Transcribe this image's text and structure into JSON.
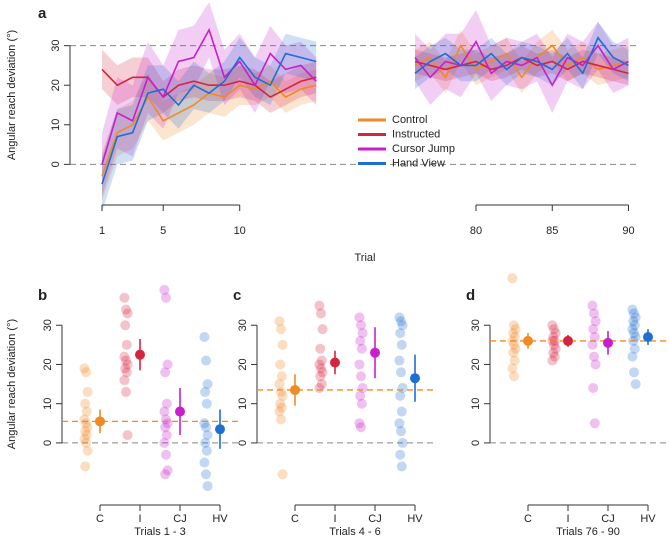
{
  "chart_data": [
    {
      "type": "line",
      "panel": "a",
      "ylabel": "Angular reach deviation (°)",
      "xlabel": "Trial",
      "x": [
        1,
        2,
        3,
        4,
        5,
        6,
        7,
        8,
        9,
        10,
        11,
        12,
        13,
        14,
        15,
        76,
        77,
        78,
        79,
        80,
        81,
        82,
        83,
        84,
        85,
        86,
        87,
        88,
        89,
        90
      ],
      "xticks": [
        1,
        5,
        10,
        80,
        85,
        90
      ],
      "ylim": [
        -8,
        38
      ],
      "yticks": [
        0,
        10,
        20,
        30
      ],
      "hlines": [
        0,
        30
      ],
      "legend": "center",
      "series": [
        {
          "name": "Control",
          "color": "#f08a24",
          "values": [
            -3,
            8,
            10,
            17,
            11,
            13,
            15,
            18,
            17,
            20,
            19,
            21,
            17,
            19,
            20,
            25,
            27,
            22,
            30,
            24,
            26,
            28,
            22,
            27,
            30,
            25,
            27,
            24,
            25,
            26
          ],
          "ci": [
            6,
            6,
            6,
            6,
            5,
            5,
            5,
            5,
            5,
            5,
            4,
            4,
            4,
            4,
            4,
            4,
            4,
            4,
            4,
            4,
            4,
            4,
            4,
            4,
            4,
            4,
            4,
            4,
            4,
            4
          ]
        },
        {
          "name": "Instructed",
          "color": "#d6243f",
          "values": [
            24,
            20,
            22,
            22,
            17,
            20,
            21,
            20,
            20,
            21,
            20,
            17,
            19,
            21,
            22,
            26,
            25,
            24,
            25,
            26,
            24,
            25,
            27,
            25,
            26,
            24,
            26,
            25,
            24,
            23
          ],
          "ci": [
            5,
            5,
            5,
            5,
            4,
            4,
            4,
            4,
            4,
            4,
            4,
            4,
            4,
            4,
            4,
            3,
            3,
            3,
            3,
            3,
            3,
            3,
            3,
            3,
            3,
            3,
            3,
            3,
            3,
            3
          ]
        },
        {
          "name": "Cursor Jump",
          "color": "#c81ecb",
          "values": [
            0,
            13,
            11,
            22,
            17,
            26,
            27,
            34,
            22,
            26,
            20,
            28,
            24,
            25,
            21,
            27,
            22,
            26,
            25,
            31,
            23,
            26,
            25,
            27,
            20,
            27,
            25,
            30,
            24,
            26
          ],
          "ci": [
            8,
            9,
            9,
            9,
            8,
            8,
            8,
            7,
            7,
            7,
            7,
            7,
            6,
            6,
            6,
            6,
            7,
            7,
            8,
            8,
            7,
            6,
            6,
            6,
            7,
            6,
            6,
            6,
            6,
            6
          ]
        },
        {
          "name": "Hand View",
          "color": "#1f6ed4",
          "values": [
            -5,
            7,
            8,
            18,
            19,
            15,
            20,
            18,
            21,
            27,
            22,
            20,
            28,
            27,
            26,
            23,
            26,
            28,
            25,
            25,
            28,
            24,
            27,
            26,
            24,
            28,
            23,
            32,
            27,
            25
          ],
          "ci": [
            7,
            7,
            7,
            7,
            6,
            6,
            6,
            5,
            5,
            5,
            5,
            5,
            5,
            5,
            5,
            4,
            4,
            4,
            4,
            4,
            4,
            4,
            4,
            4,
            4,
            4,
            4,
            4,
            4,
            4
          ]
        }
      ]
    },
    {
      "type": "strip",
      "panel": "b",
      "ylabel": "Angular reach deviation (°)",
      "xlabel": "Trials 1 - 3",
      "categories": [
        "C",
        "I",
        "CJ",
        "HV"
      ],
      "colors": [
        "#f08a24",
        "#d6243f",
        "#c81ecb",
        "#1f6ed4"
      ],
      "ylim": [
        -12,
        40
      ],
      "yticks": [
        0,
        10,
        20,
        30
      ],
      "hlines": [
        0
      ],
      "points": [
        [
          19,
          18,
          13,
          10,
          8,
          6,
          5,
          4,
          3,
          2,
          1,
          0,
          -2,
          -6
        ],
        [
          37,
          34,
          33,
          30,
          25,
          22,
          21,
          20,
          19,
          18,
          16,
          13,
          2
        ],
        [
          39,
          37,
          20,
          18,
          10,
          8,
          6,
          5,
          4,
          2,
          0,
          -3,
          -7,
          -8
        ],
        [
          27,
          21,
          15,
          13,
          10,
          5,
          4,
          2,
          0,
          -2,
          -5,
          -8,
          -11
        ]
      ],
      "means": [
        5.5,
        22.5,
        8,
        3.5
      ],
      "ci": [
        3,
        4,
        6,
        5
      ]
    },
    {
      "type": "strip",
      "panel": "c",
      "xlabel": "Trials 4 - 6",
      "categories": [
        "C",
        "I",
        "CJ",
        "HV"
      ],
      "colors": [
        "#f08a24",
        "#d6243f",
        "#c81ecb",
        "#1f6ed4"
      ],
      "ylim": [
        -12,
        40
      ],
      "yticks": [
        0,
        10,
        20,
        30
      ],
      "hlines": [
        0
      ],
      "points": [
        [
          31,
          29,
          25,
          20,
          17,
          15,
          13,
          12,
          10,
          9,
          8,
          6,
          -8
        ],
        [
          35,
          33,
          29,
          24,
          21,
          20,
          19,
          18,
          17,
          15,
          14
        ],
        [
          32,
          30,
          28,
          26,
          24,
          20,
          17,
          14,
          12,
          10,
          5,
          4
        ],
        [
          32,
          31,
          30,
          28,
          25,
          21,
          18,
          14,
          12,
          8,
          5,
          3,
          0,
          -3,
          -6
        ]
      ],
      "means": [
        13.5,
        20.5,
        23,
        16.5
      ],
      "ci": [
        4,
        3,
        6.5,
        6
      ]
    },
    {
      "type": "strip",
      "panel": "d",
      "xlabel": "Trials 76 - 90",
      "categories": [
        "C",
        "I",
        "CJ",
        "HV"
      ],
      "colors": [
        "#f08a24",
        "#d6243f",
        "#c81ecb",
        "#1f6ed4"
      ],
      "ylim": [
        -12,
        40
      ],
      "yticks": [
        0,
        10,
        20,
        30
      ],
      "hlines": [
        0
      ],
      "points": [
        [
          42,
          30,
          29,
          28,
          27,
          26,
          25,
          24,
          23,
          21,
          19,
          17
        ],
        [
          30,
          29,
          28,
          27,
          26,
          26,
          25,
          24,
          23,
          22,
          21
        ],
        [
          35,
          33,
          31,
          29,
          27,
          25,
          22,
          20,
          14,
          5
        ],
        [
          34,
          33,
          32,
          31,
          30,
          29,
          28,
          27,
          26,
          24,
          22,
          18,
          15
        ]
      ],
      "means": [
        26,
        26,
        25.5,
        27
      ],
      "ci": [
        2,
        1.5,
        3,
        2
      ]
    }
  ]
}
